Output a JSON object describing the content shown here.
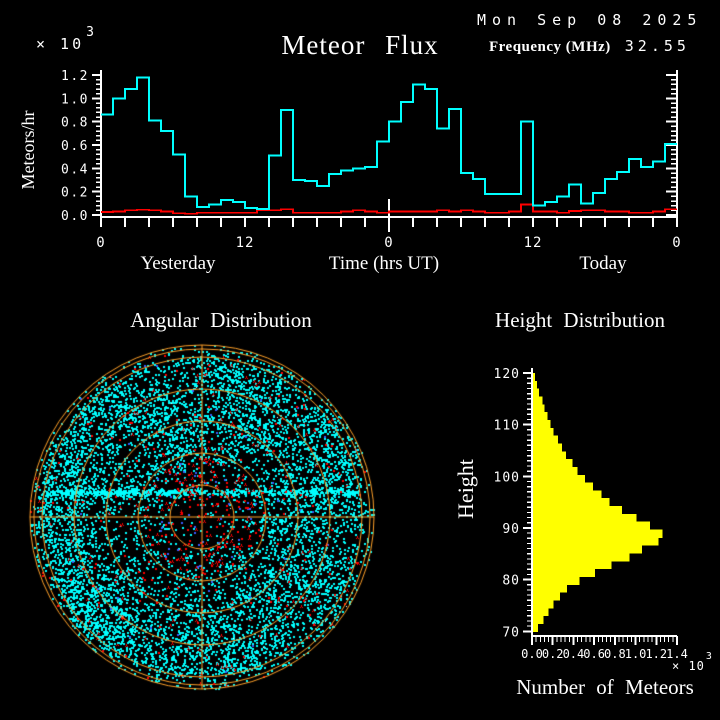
{
  "header": {
    "title": "Meteor Flux",
    "date": "Mon Sep 08 2025",
    "frequency_label": "Frequency (MHz)",
    "frequency_value": "32.55"
  },
  "flux_chart": {
    "ylabel": "Meteors/hr",
    "y_multiplier": "× 10",
    "y_multiplier_exp": "3",
    "y_tick_labels": [
      "0.0",
      "0.2",
      "0.4",
      "0.6",
      "0.8",
      "1.0",
      "1.2"
    ],
    "x_tick_labels": [
      "0",
      "12",
      "0",
      "12",
      "0"
    ],
    "x_section_labels": {
      "left": "Yesterday",
      "center": "Time (hrs UT)",
      "right": "Today"
    }
  },
  "angular_chart": {
    "title": "Angular Distribution"
  },
  "height_chart": {
    "title": "Height Distribution",
    "ylabel": "Height",
    "xlabel": "Number of Meteors",
    "x_multiplier": "× 10",
    "x_multiplier_exp": "3",
    "y_tick_labels": [
      "70",
      "80",
      "90",
      "100",
      "110",
      "120"
    ],
    "x_tick_labels": [
      "0.0",
      "0.2",
      "0.4",
      "0.6",
      "0.8",
      "1.0",
      "1.2",
      "1.4"
    ]
  },
  "chart_data": [
    {
      "type": "line",
      "style": "step",
      "title": "Meteor Flux",
      "xlabel": "Time (hrs UT)",
      "ylabel": "Meteors/hr",
      "x_range": [
        0,
        48
      ],
      "y_range": [
        0,
        1.2
      ],
      "y_unit": "x10^3 meteors/hr",
      "bin_hours": 1,
      "x_tick_positions": [
        0,
        12,
        24,
        36,
        48
      ],
      "x_tick_labels": [
        "0",
        "12",
        "0",
        "12",
        "0"
      ],
      "grid": false,
      "series": [
        {
          "name": "meteor rate",
          "color": "#00ffff",
          "values": [
            0.86,
            1.0,
            1.08,
            1.18,
            0.81,
            0.72,
            0.52,
            0.16,
            0.07,
            0.09,
            0.13,
            0.11,
            0.06,
            0.05,
            0.51,
            0.9,
            0.3,
            0.29,
            0.25,
            0.35,
            0.38,
            0.4,
            0.41,
            0.63,
            0.8,
            0.97,
            1.12,
            1.08,
            0.74,
            0.91,
            0.36,
            0.31,
            0.18,
            0.18,
            0.18,
            0.8,
            0.08,
            0.11,
            0.16,
            0.26,
            0.1,
            0.19,
            0.31,
            0.37,
            0.48,
            0.41,
            0.46,
            0.61
          ]
        },
        {
          "name": "background",
          "color": "#ff0000",
          "values": [
            0.025,
            0.03,
            0.04,
            0.045,
            0.04,
            0.03,
            0.015,
            0.01,
            0.02,
            0.02,
            0.02,
            0.02,
            0.02,
            0.04,
            0.04,
            0.05,
            0.02,
            0.02,
            0.02,
            0.02,
            0.03,
            0.04,
            0.03,
            0.02,
            0.03,
            0.03,
            0.03,
            0.03,
            0.04,
            0.03,
            0.04,
            0.03,
            0.02,
            0.02,
            0.03,
            0.09,
            0.03,
            0.03,
            0.02,
            0.035,
            0.04,
            0.04,
            0.03,
            0.03,
            0.02,
            0.02,
            0.03,
            0.05
          ]
        }
      ]
    },
    {
      "type": "scatter",
      "title": "Angular Distribution",
      "plot": "polar sky map of meteor echo directions",
      "seed": 1337,
      "rings_fraction": [
        0.186,
        0.372,
        0.558,
        0.744,
        0.93
      ],
      "outer_rings_fraction": [
        0.977,
        1.0
      ],
      "grid_color": "#ffa028",
      "point_colors": {
        "echo": "#00ffff",
        "strong": "#ff0000",
        "weak": "#3a5bff",
        "rare": "#ffffff"
      },
      "approx_counts": {
        "cyan": 7000,
        "red": 430,
        "blue": 80,
        "white": 25
      },
      "streak": {
        "dy": -25,
        "half_width": 156,
        "points": 560
      }
    },
    {
      "type": "bar",
      "title": "Height Distribution",
      "orientation": "horizontal",
      "ylabel": "Height",
      "xlabel": "Number of Meteors",
      "bar_color": "#ffff00",
      "y_unit": "km",
      "y_range": [
        70,
        120
      ],
      "x_range": [
        0,
        1.4
      ],
      "x_unit": "x10^3 meteors",
      "bin_km": 1.515,
      "values_top_to_bottom": [
        0.02,
        0.04,
        0.06,
        0.09,
        0.11,
        0.14,
        0.17,
        0.2,
        0.24,
        0.28,
        0.32,
        0.38,
        0.43,
        0.5,
        0.58,
        0.66,
        0.74,
        0.86,
        1.0,
        1.13,
        1.25,
        1.21,
        1.05,
        0.93,
        0.76,
        0.6,
        0.45,
        0.33,
        0.26,
        0.2,
        0.15,
        0.1,
        0.05
      ]
    }
  ]
}
